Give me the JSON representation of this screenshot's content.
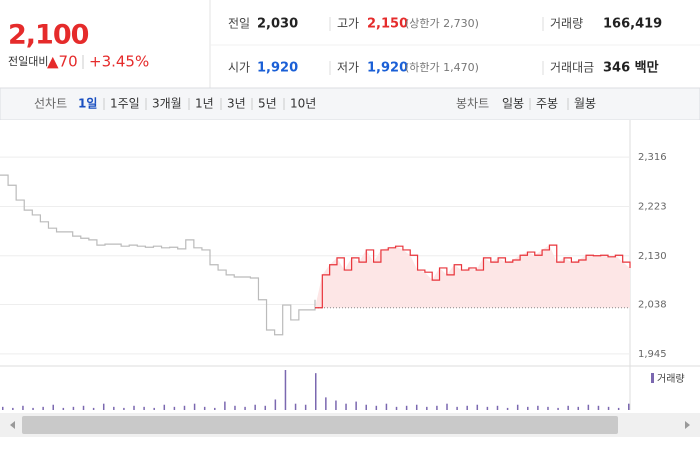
{
  "quote": {
    "price": "2,100",
    "change_label": "전일대비",
    "change": "▲70",
    "change_pct": "+3.45%"
  },
  "stats": [
    [
      {
        "label": "전일",
        "value": "2,030",
        "color": "#222222"
      },
      {
        "label": "고가",
        "value": "2,150",
        "color": "#e52b2b",
        "note": "(상한가 2,730)"
      },
      {
        "label": "거래량",
        "value": "166,419",
        "color": "#222222"
      }
    ],
    [
      {
        "label": "시가",
        "value": "1,920",
        "color": "#1a5fd6"
      },
      {
        "label": "저가",
        "value": "1,920",
        "color": "#1a5fd6",
        "note": "(하한가 1,470)"
      },
      {
        "label": "거래대금",
        "value": "346 백만",
        "color": "#222222"
      }
    ]
  ],
  "toolbar": {
    "left_label": "선차트",
    "left_tabs": [
      "1일",
      "1주일",
      "3개월",
      "1년",
      "3년",
      "5년",
      "10년"
    ],
    "selected": 0,
    "right_label": "봉차트",
    "right_tabs": [
      "일봉",
      "주봉",
      "월봉"
    ]
  },
  "chart_data": {
    "type": "line",
    "ylim": [
      1924,
      2386
    ],
    "yticks": [
      {
        "value": 1945,
        "label": "1,945"
      },
      {
        "value": 2038,
        "label": "2,038"
      },
      {
        "value": 2130,
        "label": "2,130"
      },
      {
        "value": 2223,
        "label": "2,223"
      },
      {
        "value": 2316,
        "label": "2,316"
      }
    ],
    "grid": true,
    "series": [
      {
        "color": "#bbbbbb",
        "values": [
          2282,
          2263,
          2235,
          2216,
          2207,
          2194,
          2182,
          2175,
          2175,
          2167,
          2163,
          2160,
          2150,
          2152,
          2152,
          2148,
          2150,
          2148,
          2146,
          2148,
          2145,
          2146,
          2143,
          2160,
          2145,
          2141,
          2113,
          2103,
          2094,
          2090,
          2090,
          2088,
          2047,
          1990,
          1981,
          2037,
          2009,
          2028,
          2028,
          2047
        ]
      },
      {
        "color": "#e8333a",
        "fill": "#fde6e6",
        "values": [
          2032,
          2094,
          2113,
          2126,
          2103,
          2126,
          2118,
          2141,
          2118,
          2141,
          2145,
          2148,
          2141,
          2131,
          2103,
          2099,
          2084,
          2107,
          2094,
          2113,
          2103,
          2107,
          2103,
          2126,
          2118,
          2126,
          2118,
          2122,
          2131,
          2137,
          2131,
          2141,
          2150,
          2118,
          2126,
          2118,
          2122,
          2131,
          2130,
          2131,
          2128,
          2131,
          2118,
          2107
        ]
      }
    ],
    "volume": {
      "name": "거래량",
      "color": "#7b68b0",
      "values": [
        3,
        2,
        4,
        2,
        3,
        5,
        2,
        3,
        4,
        2,
        6,
        3,
        2,
        4,
        3,
        2,
        5,
        3,
        4,
        6,
        3,
        2,
        8,
        4,
        3,
        5,
        4,
        10,
        38,
        6,
        5,
        35,
        12,
        9,
        6,
        8,
        5,
        4,
        6,
        3,
        4,
        5,
        3,
        4,
        6,
        3,
        4,
        5,
        3,
        4,
        2,
        5,
        3,
        4,
        3,
        2,
        4,
        3,
        5,
        4,
        3,
        2,
        6
      ]
    }
  }
}
